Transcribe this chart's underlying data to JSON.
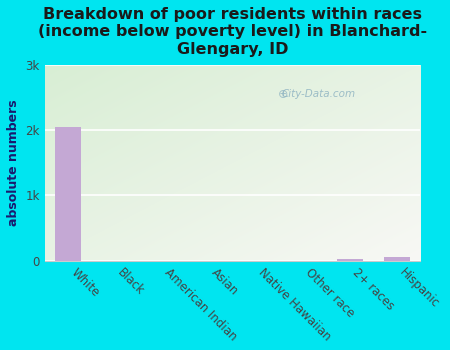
{
  "categories": [
    "White",
    "Black",
    "American Indian",
    "Asian",
    "Native Hawaiian",
    "Other race",
    "2+ races",
    "Hispanic"
  ],
  "values": [
    2050,
    0,
    0,
    0,
    0,
    0,
    30,
    60
  ],
  "bar_color": "#c4a8d4",
  "bg_outer": "#00e5f0",
  "bg_plot_topleft": "#d8eed4",
  "bg_plot_topright": "#f5f5f0",
  "bg_plot_bottom": "#e8f4e0",
  "title": "Breakdown of poor residents within races\n(income below poverty level) in Blanchard-\nGlengary, ID",
  "ylabel": "absolute numbers",
  "yticks": [
    0,
    1000,
    2000,
    3000
  ],
  "ytick_labels": [
    "0",
    "1k",
    "2k",
    "3k"
  ],
  "ylim": [
    0,
    3000
  ],
  "title_fontsize": 11.5,
  "label_fontsize": 9,
  "tick_fontsize": 8.5,
  "watermark": "City-Data.com"
}
